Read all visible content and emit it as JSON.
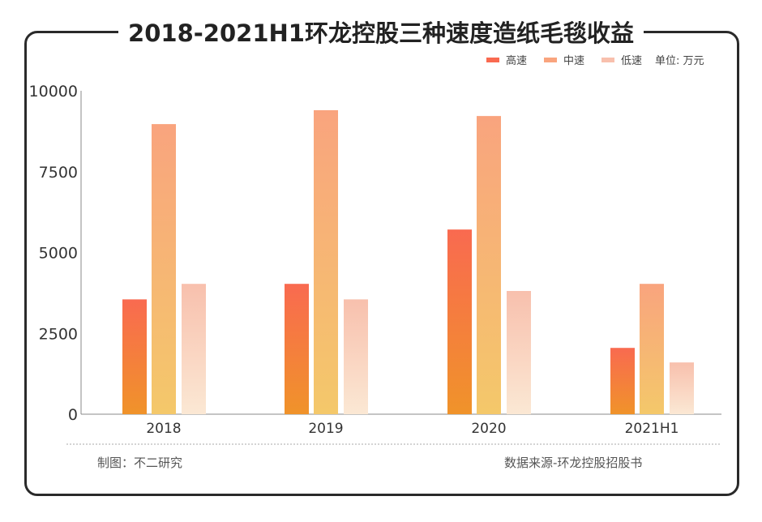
{
  "chart_data": {
    "type": "bar",
    "title": "2018-2021H1环龙控股三种速度造纸毛毯收益",
    "unit": "单位: 万元",
    "categories": [
      "2018",
      "2019",
      "2020",
      "2021H1"
    ],
    "series": [
      {
        "name": "高速",
        "values": [
          3550,
          4030,
          5710,
          2050
        ],
        "color_top": "#f96a50",
        "color_bottom": "#f0932a"
      },
      {
        "name": "中速",
        "values": [
          8970,
          9400,
          9220,
          4030
        ],
        "color_top": "#f9a47e",
        "color_bottom": "#f4c86a"
      },
      {
        "name": "低速",
        "values": [
          4030,
          3550,
          3810,
          1600
        ],
        "color_top": "#f8c0ad",
        "color_bottom": "#fbe8d4"
      }
    ],
    "yticks": [
      "0",
      "2500",
      "5000",
      "7500",
      "10000"
    ],
    "ylim": [
      0,
      10000
    ],
    "grid": false,
    "legend": "top-right"
  },
  "footer": {
    "left": "制图：不二研究",
    "right": "数据来源-环龙控股招股书"
  }
}
